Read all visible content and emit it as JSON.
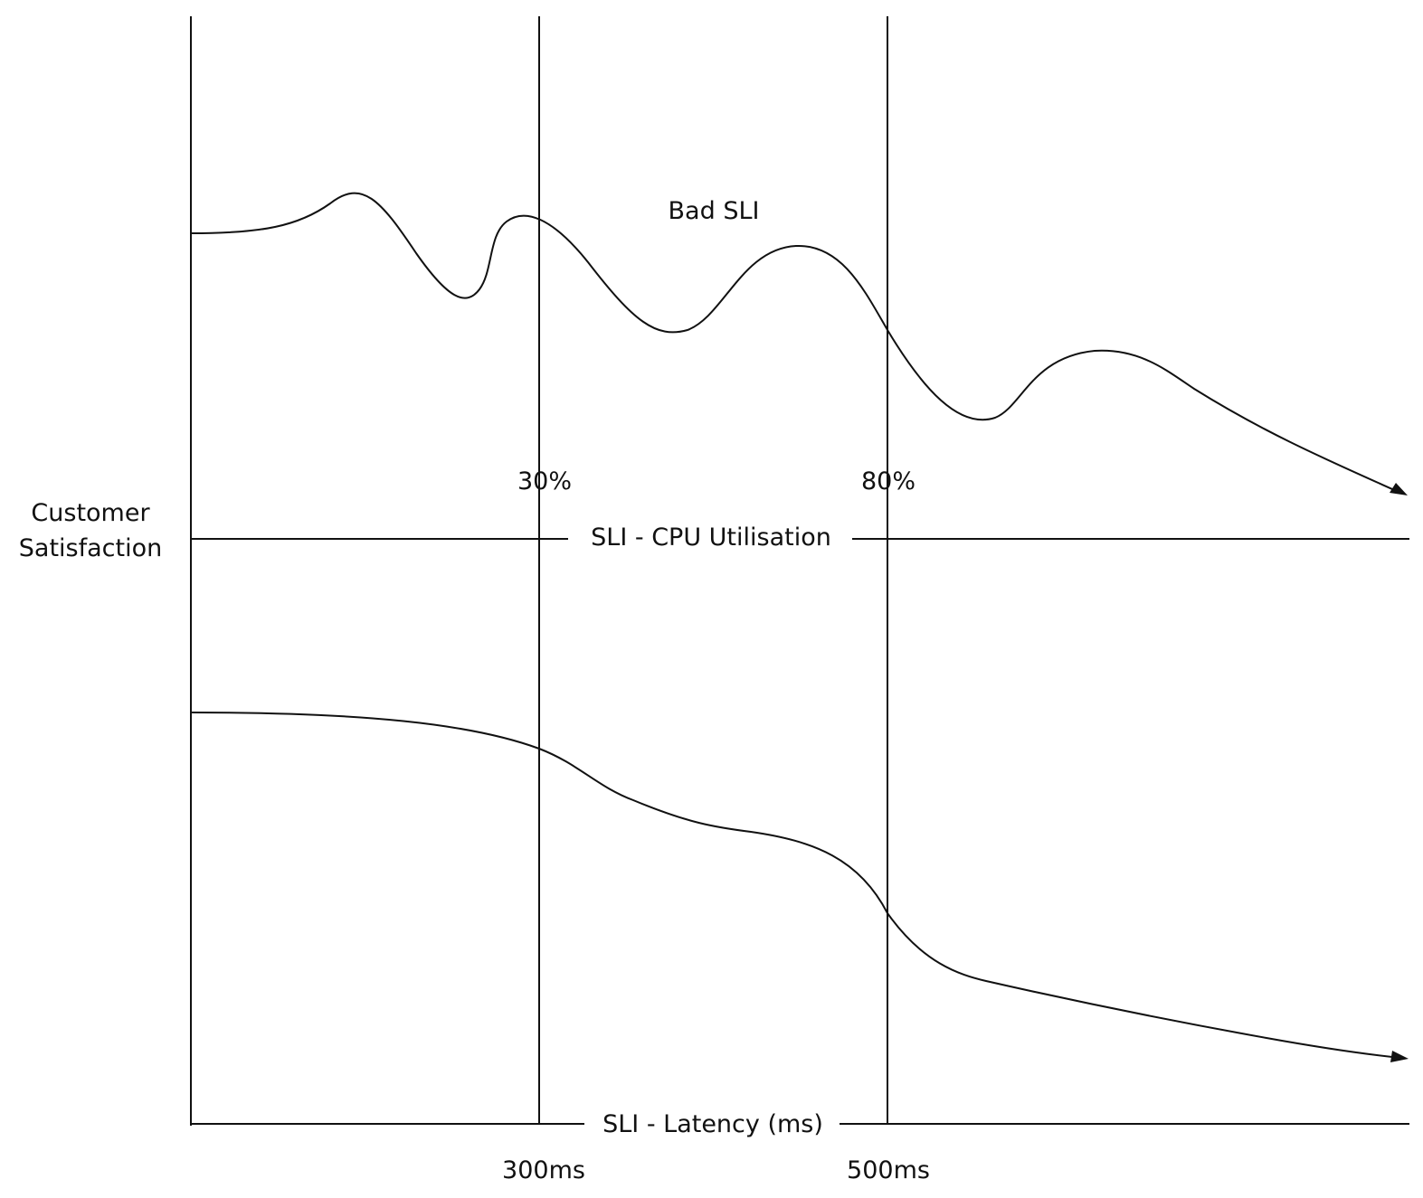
{
  "y_axis_label": [
    "Customer",
    "Satisfaction"
  ],
  "top_panel": {
    "axis_label": "SLI - CPU Utilisation",
    "curve_label": "Bad SLI",
    "thresholds": [
      "30%",
      "80%"
    ]
  },
  "bottom_panel": {
    "axis_label": "SLI - Latency (ms)",
    "thresholds": [
      "300ms",
      "500ms"
    ]
  },
  "colors": {
    "ink": "#111111",
    "background": "#ffffff"
  }
}
